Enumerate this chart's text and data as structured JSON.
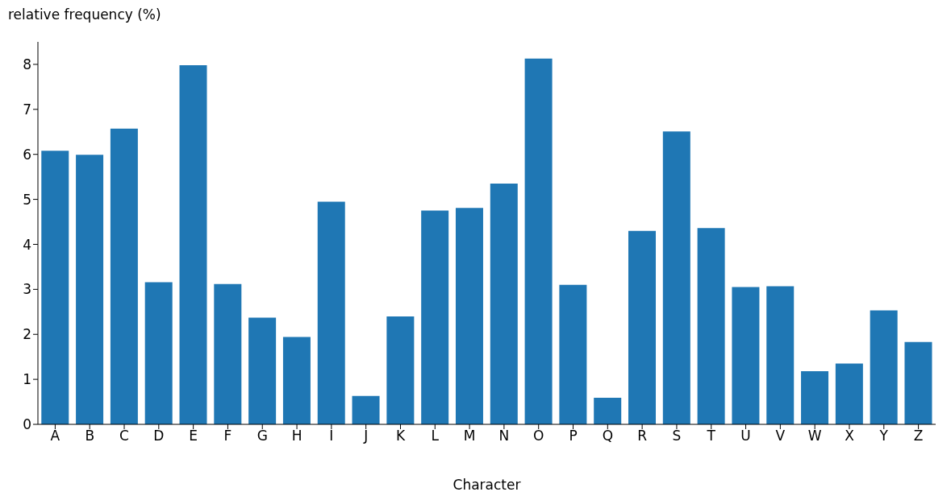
{
  "chart_data": {
    "type": "bar",
    "xlabel": "Character",
    "ylabel": "relative frequency (%)",
    "categories": [
      "A",
      "B",
      "C",
      "D",
      "E",
      "F",
      "G",
      "H",
      "I",
      "J",
      "K",
      "L",
      "M",
      "N",
      "O",
      "P",
      "Q",
      "R",
      "S",
      "T",
      "U",
      "V",
      "W",
      "X",
      "Y",
      "Z"
    ],
    "values": [
      6.08,
      5.99,
      6.57,
      3.16,
      7.98,
      3.12,
      2.37,
      1.94,
      4.95,
      0.63,
      2.4,
      4.75,
      4.81,
      5.35,
      8.13,
      3.1,
      0.59,
      4.3,
      6.51,
      4.36,
      3.05,
      3.07,
      1.18,
      1.35,
      2.53,
      1.83
    ],
    "color": "#1f77b4",
    "ylim": [
      0,
      8.5
    ],
    "yticks": [
      0,
      1,
      2,
      3,
      4,
      5,
      6,
      7,
      8
    ],
    "grid": false
  }
}
